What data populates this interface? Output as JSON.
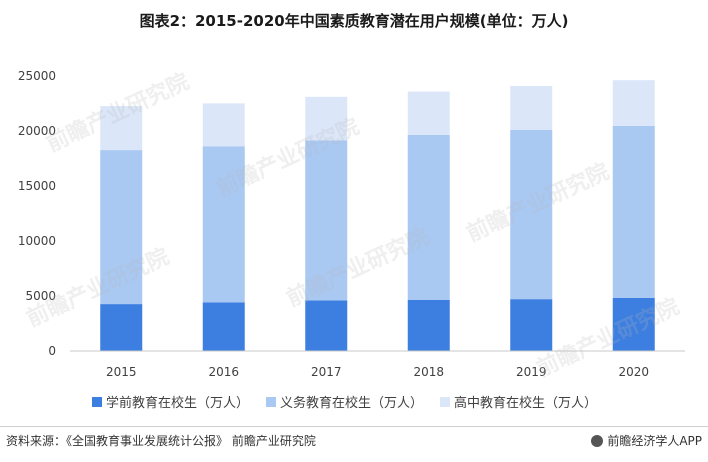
{
  "title": "图表2：2015-2020年中国素质教育潜在用户规模(单位：万人)",
  "footer": {
    "source": "资料来源：《全国教育事业发展统计公报》 前瞻产业研究院",
    "brand": "前瞻经济学人APP"
  },
  "watermark": "前瞻产业研究院",
  "colors": {
    "preschool": "#3d7fe0",
    "compulsory": "#a9c8f2",
    "highschool": "#dbe7f9",
    "axis": "#c8c8c8"
  },
  "chart_data": {
    "type": "bar",
    "stacked": true,
    "categories": [
      "2015",
      "2016",
      "2017",
      "2018",
      "2019",
      "2020"
    ],
    "series": [
      {
        "name": "学前教育在校生（万人）",
        "values": [
          4265,
          4414,
          4600,
          4656,
          4714,
          4818
        ]
      },
      {
        "name": "义务教育在校生（万人）",
        "values": [
          14000,
          14200,
          14535,
          14991,
          15388,
          15640
        ]
      },
      {
        "name": "高中教育在校生（万人）",
        "values": [
          4000,
          3900,
          3971,
          3935,
          3995,
          4163
        ]
      }
    ],
    "title": "图表2：2015-2020年中国素质教育潜在用户规模(单位：万人)",
    "xlabel": "",
    "ylabel": "",
    "ylim": [
      0,
      25000
    ],
    "yticks": [
      0,
      5000,
      10000,
      15000,
      20000,
      25000
    ],
    "grid": false,
    "legend": "bottom"
  }
}
